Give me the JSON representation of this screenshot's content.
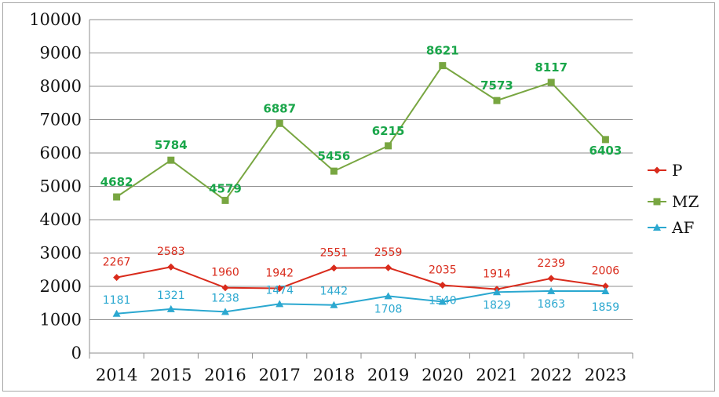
{
  "chart_data": {
    "type": "line",
    "title": "",
    "xlabel": "",
    "ylabel": "",
    "ylim": [
      0,
      10000
    ],
    "yticks": [
      0,
      1000,
      2000,
      3000,
      4000,
      5000,
      6000,
      7000,
      8000,
      9000,
      10000
    ],
    "grid": "horizontal",
    "legend": "right",
    "categories": [
      "2014",
      "2015",
      "2016",
      "2017",
      "2018",
      "2019",
      "2020",
      "2021",
      "2022",
      "2023"
    ],
    "series": [
      {
        "name": "P",
        "color": "#d92b1c",
        "marker": "diamond",
        "values": [
          2267,
          2583,
          1960,
          1942,
          2551,
          2559,
          2035,
          1914,
          2239,
          2006
        ]
      },
      {
        "name": "MZ",
        "color": "#78a641",
        "marker": "square",
        "values": [
          4682,
          5784,
          4579,
          6887,
          5456,
          6215,
          8621,
          7573,
          8117,
          6403
        ]
      },
      {
        "name": "AF",
        "color": "#2ba8d0",
        "marker": "triangle",
        "values": [
          1181,
          1321,
          1238,
          1474,
          1442,
          1708,
          1540,
          1829,
          1863,
          1859
        ]
      }
    ]
  }
}
